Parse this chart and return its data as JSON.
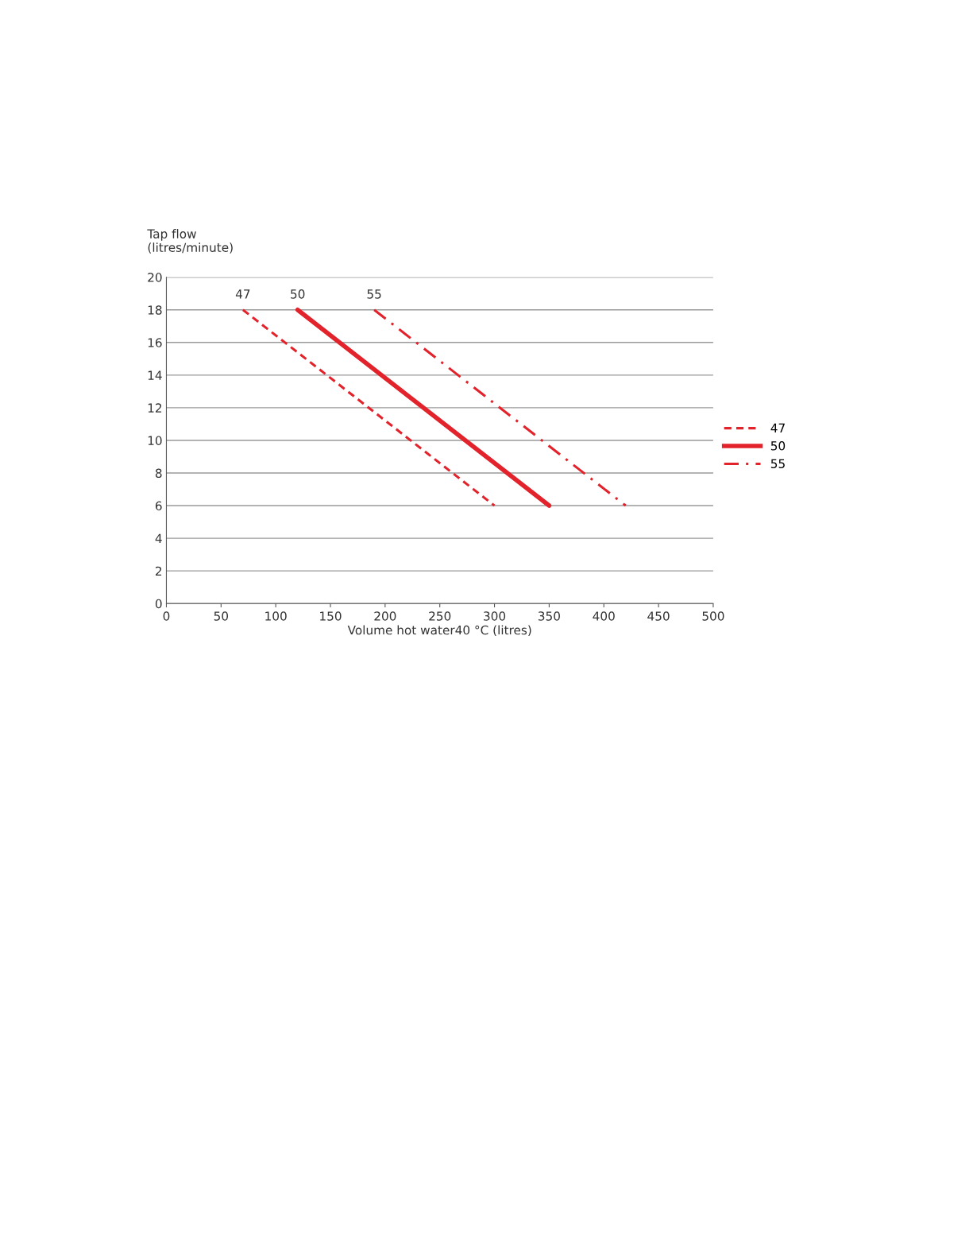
{
  "chart_data": {
    "type": "line",
    "xlabel": "Volume hot water40 °C (litres)",
    "ylabel": "Tap flow\n(litres/minute)",
    "xlim": [
      0,
      500
    ],
    "xticks": [
      0,
      50,
      100,
      150,
      200,
      250,
      300,
      350,
      400,
      450,
      500
    ],
    "ylim": [
      0,
      20
    ],
    "yticks": [
      0,
      2,
      4,
      6,
      8,
      10,
      12,
      14,
      16,
      18,
      20
    ],
    "grid": "y",
    "legend": "right",
    "marker": "none",
    "series": [
      {
        "name": "47",
        "color": "#e3232b",
        "x": [
          70,
          300
        ],
        "values": [
          18,
          6
        ],
        "line_style": "dashed"
      },
      {
        "name": "50",
        "color": "#e3232b",
        "x": [
          120,
          350
        ],
        "values": [
          18,
          6
        ],
        "line_style": "solid"
      },
      {
        "name": "55",
        "color": "#e3232b",
        "x": [
          190,
          420
        ],
        "values": [
          18,
          6
        ],
        "line_style": "dashdot"
      }
    ]
  }
}
